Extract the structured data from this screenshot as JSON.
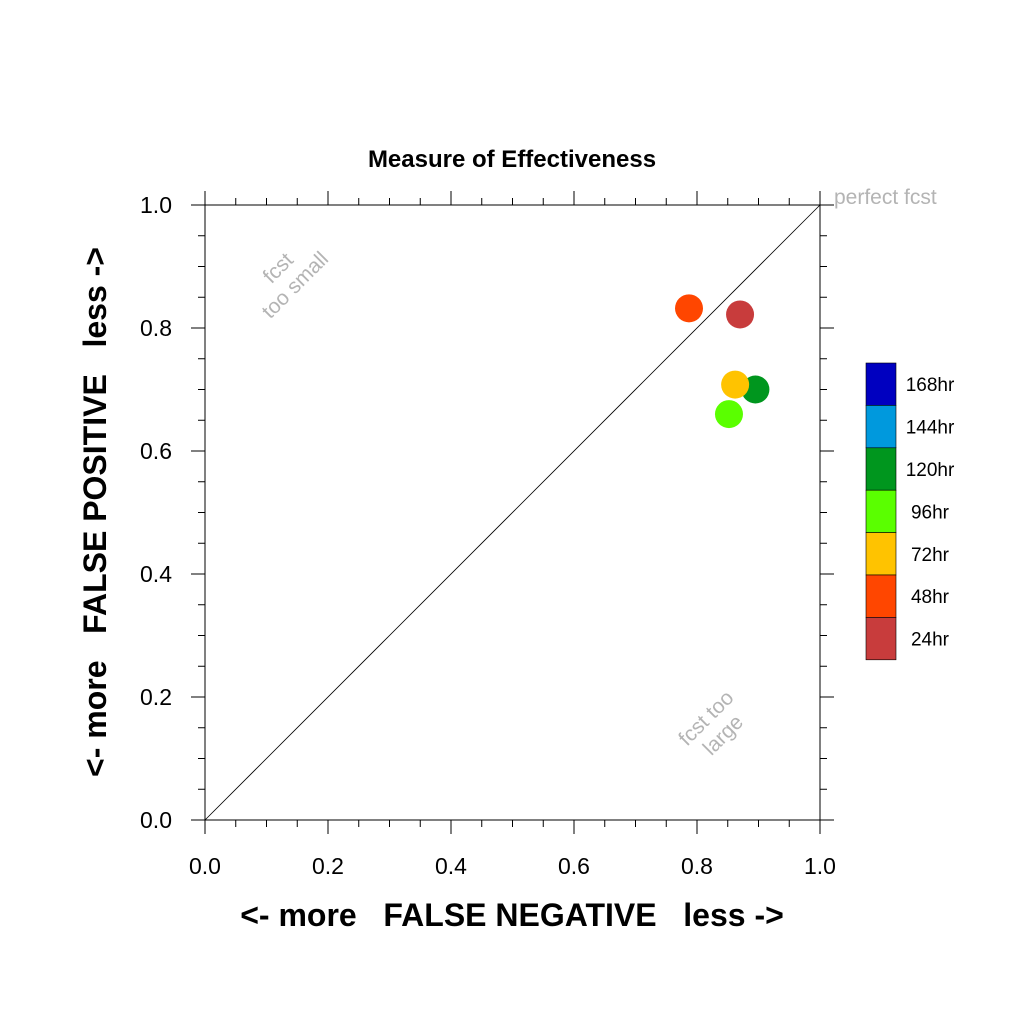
{
  "chart_data": {
    "type": "scatter",
    "title": "Measure of Effectiveness",
    "xlabel": "<- more   FALSE NEGATIVE   less ->",
    "ylabel": "<- more   FALSE POSITIVE   less ->",
    "xlim": [
      0,
      1
    ],
    "ylim": [
      0,
      1
    ],
    "x_ticks": [
      "0.0",
      "0.2",
      "0.4",
      "0.6",
      "0.8",
      "1.0"
    ],
    "y_ticks": [
      "0.0",
      "0.2",
      "0.4",
      "0.6",
      "0.8",
      "1.0"
    ],
    "grid": false,
    "diagonal_line": true,
    "annotations": {
      "perfect": "perfect fcst",
      "too_small_line1": "fcst",
      "too_small_line2": "too small",
      "too_large_line1": "fcst too",
      "too_large_line2": "large"
    },
    "legend_placement": "right",
    "series": [
      {
        "name": "168hr",
        "color": "#0000c0",
        "points": []
      },
      {
        "name": "144hr",
        "color": "#0099dd",
        "points": []
      },
      {
        "name": "120hr",
        "color": "#00961e",
        "points": [
          [
            0.895,
            0.7
          ]
        ]
      },
      {
        "name": "96hr",
        "color": "#5aff00",
        "points": [
          [
            0.852,
            0.66
          ]
        ]
      },
      {
        "name": "72hr",
        "color": "#ffc300",
        "points": [
          [
            0.862,
            0.708
          ]
        ]
      },
      {
        "name": "48hr",
        "color": "#ff4600",
        "points": [
          [
            0.787,
            0.832
          ]
        ]
      },
      {
        "name": "24hr",
        "color": "#c83c3c",
        "points": [
          [
            0.87,
            0.822
          ]
        ]
      }
    ]
  }
}
